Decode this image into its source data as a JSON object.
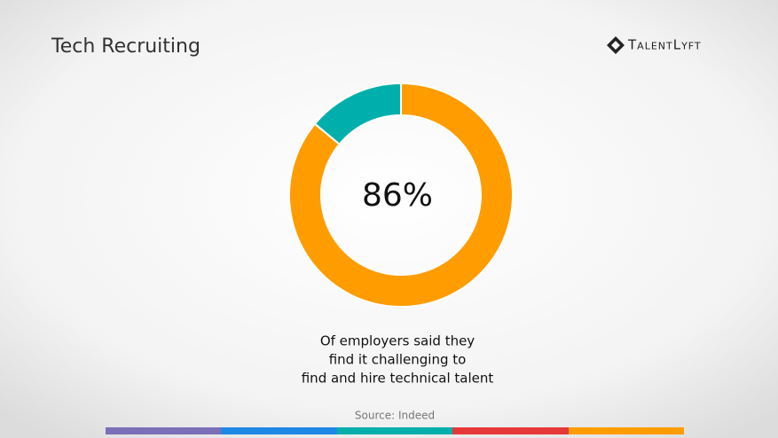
{
  "logo": "TalentLyft",
  "chart_data": {
    "type": "pie",
    "title": "Tech Recruiting",
    "values": [
      86,
      14
    ],
    "value_labels": [
      "86%",
      null
    ],
    "colors": [
      "#ff9c00",
      "#00afac"
    ],
    "donut": true,
    "caption": [
      "Of employers said they",
      "find it challenging to",
      "find and hire technical talent"
    ],
    "source": "Source: Indeed"
  }
}
